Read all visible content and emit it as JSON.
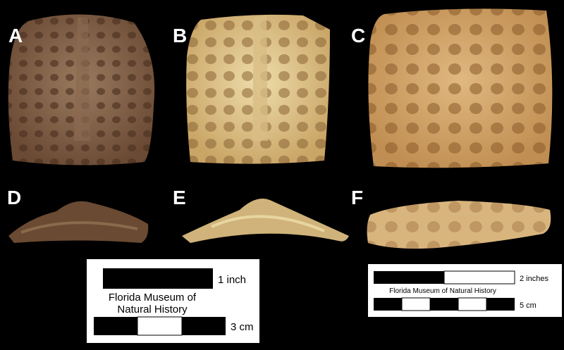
{
  "panels": [
    "A",
    "B",
    "C",
    "D",
    "E",
    "F"
  ],
  "scale_bar_left": {
    "imperial_label": "1 inch",
    "credit": [
      "Florida Museum of",
      "Natural History"
    ],
    "metric_label": "3 cm"
  },
  "scale_bar_right": {
    "imperial_label": "2 inches",
    "credit": "Florida Museum of Natural History",
    "metric_label": "5 cm"
  }
}
